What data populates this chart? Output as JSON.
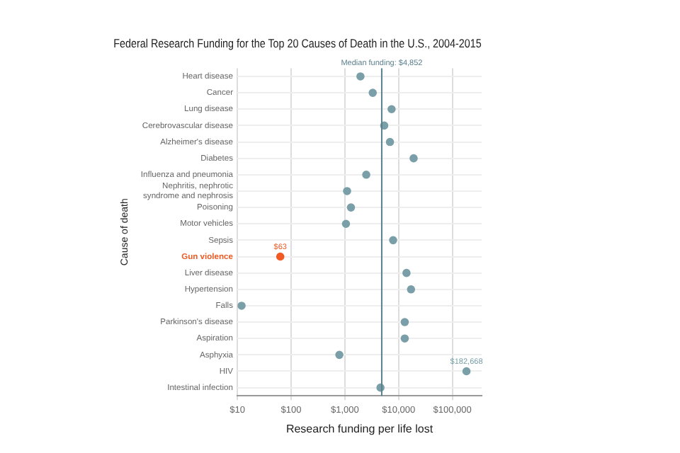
{
  "chart_data": {
    "type": "scatter",
    "title": "Federal Research Funding for the Top 20 Causes of Death in the U.S., 2004-2015",
    "xlabel": "Research funding per life lost",
    "ylabel": "Cause of death",
    "orientation": "horizontal",
    "log": "x",
    "categories": [
      "Heart disease",
      "Cancer",
      "Lung disease",
      "Cerebrovascular disease",
      "Alzheimer's disease",
      "Diabetes",
      "Influenza and pneumonia",
      "Nephritis, nephrotic syndrome and nephrosis",
      "Poisoning",
      "Motor vehicles",
      "Sepsis",
      "Gun violence",
      "Liver disease",
      "Hypertension",
      "Falls",
      "Parkinson's disease",
      "Aspiration",
      "Asphyxia",
      "HIV",
      "Intestinal infection"
    ],
    "values": [
      1950,
      3300,
      7400,
      5400,
      6900,
      19000,
      2500,
      1100,
      1300,
      1050,
      7900,
      63,
      14000,
      17000,
      12,
      13000,
      13000,
      790,
      182668,
      4600
    ],
    "value_labels": [
      null,
      null,
      null,
      null,
      null,
      null,
      null,
      null,
      null,
      null,
      null,
      "$63",
      null,
      null,
      null,
      null,
      null,
      null,
      "$182,668",
      null
    ],
    "color": "#7a9fa8",
    "colors": [
      "#7a9fa8",
      "#7a9fa8",
      "#7a9fa8",
      "#7a9fa8",
      "#7a9fa8",
      "#7a9fa8",
      "#7a9fa8",
      "#7a9fa8",
      "#7a9fa8",
      "#7a9fa8",
      "#7a9fa8",
      "#f15a24",
      "#7a9fa8",
      "#7a9fa8",
      "#7a9fa8",
      "#7a9fa8",
      "#7a9fa8",
      "#7a9fa8",
      "#7a9fa8",
      "#7a9fa8"
    ],
    "marker": "circle",
    "xlim": [
      10,
      350000
    ],
    "xticks": [
      {
        "value": 10,
        "label": "$10"
      },
      {
        "value": 100,
        "label": "$100"
      },
      {
        "value": 1000,
        "label": "$1,000"
      },
      {
        "value": 10000,
        "label": "$10,000"
      },
      {
        "value": 100000,
        "label": "$100,000"
      }
    ],
    "ref_lines": [
      {
        "axis": "x",
        "value": 4852,
        "label": "Median funding: $4,852",
        "color": "#5a7f8c"
      }
    ],
    "grid": true,
    "legend": false
  }
}
